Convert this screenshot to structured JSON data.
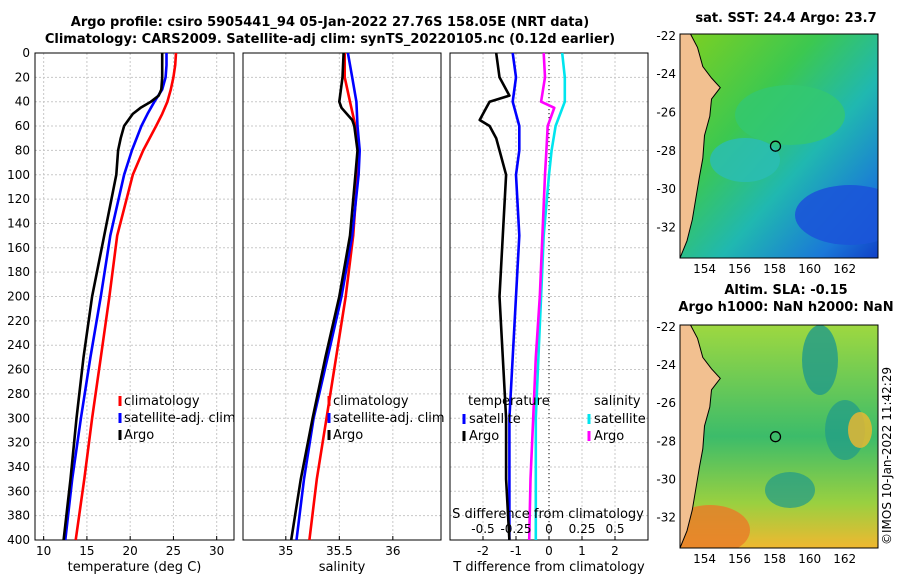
{
  "titles": {
    "line1": "Argo profile: csiro 5905441_94 05-Jan-2022 27.76S 158.05E (NRT data)",
    "line2": "Climatology: CARS2009. Satellite-adj clim: synTS_20220105.nc (0.12d earlier)"
  },
  "maps": {
    "sst_title": "sat. SST: 24.4 Argo: 23.7",
    "sla_title_1": "Altim. SLA: -0.15",
    "sla_title_2": "Argo h1000: NaN h2000: NaN",
    "lon_ticks": [
      "154",
      "156",
      "158",
      "160",
      "162"
    ],
    "lat_ticks": [
      "-22",
      "-24",
      "-26",
      "-28",
      "-30",
      "-32"
    ],
    "float_marker": {
      "lon": 158.05,
      "lat": -27.76
    }
  },
  "credit": "©IMOS 10-Jan-2022 11:42:29",
  "colors": {
    "climatology": "#ff0000",
    "satellite": "#0000ff",
    "argo": "#000000",
    "sal_satellite": "#00e5ee",
    "sal_argo": "#ff00ff"
  },
  "chart_data": [
    {
      "type": "line",
      "name": "temperature-profile",
      "xlabel": "temperature (deg C)",
      "ylabel": "",
      "xlim": [
        9,
        32
      ],
      "ylim": [
        400,
        0
      ],
      "xticks": [
        10,
        15,
        20,
        25,
        30
      ],
      "yticks": [
        0,
        20,
        40,
        60,
        80,
        100,
        120,
        140,
        160,
        180,
        200,
        220,
        240,
        260,
        280,
        300,
        320,
        340,
        360,
        380,
        400
      ],
      "legend": [
        "climatology",
        "satellite-adj. clim",
        "Argo"
      ],
      "series": [
        {
          "name": "climatology",
          "depth": [
            0,
            10,
            20,
            30,
            40,
            50,
            60,
            80,
            100,
            150,
            200,
            250,
            300,
            350,
            400
          ],
          "values": [
            25.3,
            25.2,
            25.0,
            24.7,
            24.3,
            23.7,
            23.0,
            21.5,
            20.3,
            18.5,
            17.6,
            16.6,
            15.6,
            14.7,
            13.7
          ]
        },
        {
          "name": "satellite-adj. clim",
          "depth": [
            0,
            10,
            20,
            30,
            40,
            50,
            60,
            80,
            100,
            150,
            200,
            250,
            300,
            350,
            400
          ],
          "values": [
            24.2,
            24.2,
            24.1,
            23.7,
            22.8,
            22.0,
            21.3,
            20.2,
            19.3,
            17.7,
            16.6,
            15.4,
            14.3,
            13.3,
            12.5
          ]
        },
        {
          "name": "Argo",
          "depth": [
            0,
            10,
            20,
            30,
            35,
            40,
            45,
            50,
            55,
            60,
            70,
            80,
            100,
            150,
            200,
            250,
            300,
            350,
            400
          ],
          "values": [
            23.7,
            23.7,
            23.7,
            23.6,
            23.3,
            22.4,
            21.2,
            20.3,
            19.8,
            19.3,
            18.9,
            18.6,
            18.4,
            17.0,
            15.6,
            14.6,
            13.8,
            13.1,
            12.3
          ]
        }
      ]
    },
    {
      "type": "line",
      "name": "salinity-profile",
      "xlabel": "salinity",
      "ylabel": "",
      "xlim": [
        34.6,
        36.45
      ],
      "ylim": [
        400,
        0
      ],
      "xticks": [
        35,
        35.5,
        36
      ],
      "xticklabels": [
        "35",
        "35.5",
        "36"
      ],
      "legend": [
        "climatology",
        "satellite-adj. clim",
        "Argo"
      ],
      "series": [
        {
          "name": "climatology",
          "depth": [
            0,
            20,
            40,
            60,
            80,
            100,
            150,
            200,
            250,
            300,
            350,
            400
          ],
          "values": [
            35.55,
            35.55,
            35.6,
            35.65,
            35.68,
            35.67,
            35.63,
            35.56,
            35.47,
            35.38,
            35.29,
            35.22
          ]
        },
        {
          "name": "satellite-adj. clim",
          "depth": [
            0,
            20,
            40,
            60,
            80,
            100,
            150,
            200,
            250,
            300,
            350,
            400
          ],
          "values": [
            35.58,
            35.62,
            35.66,
            35.67,
            35.69,
            35.68,
            35.62,
            35.52,
            35.39,
            35.26,
            35.17,
            35.1
          ]
        },
        {
          "name": "Argo",
          "depth": [
            0,
            20,
            40,
            45,
            55,
            60,
            80,
            100,
            150,
            200,
            250,
            300,
            350,
            400
          ],
          "values": [
            35.54,
            35.53,
            35.5,
            35.52,
            35.62,
            35.64,
            35.67,
            35.65,
            35.6,
            35.5,
            35.37,
            35.25,
            35.14,
            35.05
          ]
        }
      ]
    },
    {
      "type": "line",
      "name": "difference-profile",
      "xlabel": "T difference from climatology",
      "xlabel_top": "S difference from climatology",
      "xlim": [
        -3,
        3
      ],
      "ylim": [
        400,
        0
      ],
      "xticks": [
        -2,
        -1,
        0,
        1,
        2
      ],
      "top_ticks": [
        -0.5,
        -0.25,
        0,
        0.25,
        0.5
      ],
      "top_ticklabels": [
        "-0.5",
        "-0.25",
        "0",
        "0.25",
        "0.5"
      ],
      "legend_t": {
        "title": "temperature",
        "items": [
          "satellite",
          "Argo"
        ]
      },
      "legend_s": {
        "title": "salinity",
        "items": [
          "satellite",
          "Argo"
        ]
      },
      "series": [
        {
          "name": "T satellite",
          "depth": [
            0,
            20,
            40,
            60,
            80,
            100,
            150,
            200,
            250,
            300,
            350,
            400
          ],
          "values": [
            -1.1,
            -1.0,
            -1.1,
            -0.9,
            -0.9,
            -1.0,
            -0.9,
            -1.0,
            -1.1,
            -1.2,
            -1.2,
            -1.2
          ]
        },
        {
          "name": "T Argo",
          "depth": [
            0,
            20,
            35,
            40,
            45,
            50,
            55,
            60,
            70,
            80,
            100,
            150,
            200,
            250,
            300,
            350,
            400
          ],
          "values": [
            -1.6,
            -1.5,
            -1.2,
            -1.8,
            -1.9,
            -2.0,
            -2.1,
            -1.8,
            -1.6,
            -1.5,
            -1.3,
            -1.4,
            -1.5,
            -1.4,
            -1.3,
            -1.3,
            -1.2
          ]
        },
        {
          "name": "S satellite",
          "depth": [
            0,
            20,
            40,
            60,
            80,
            100,
            150,
            200,
            250,
            300,
            350,
            400
          ],
          "values": [
            0.1,
            0.12,
            0.12,
            0.05,
            0.02,
            0.0,
            -0.04,
            -0.06,
            -0.08,
            -0.1,
            -0.1,
            -0.1
          ]
        },
        {
          "name": "S Argo",
          "depth": [
            0,
            20,
            40,
            45,
            60,
            80,
            100,
            150,
            200,
            250,
            300,
            350,
            400
          ],
          "values": [
            -0.04,
            -0.03,
            -0.06,
            0.04,
            -0.01,
            -0.02,
            -0.03,
            -0.05,
            -0.07,
            -0.1,
            -0.12,
            -0.14,
            -0.15
          ]
        }
      ]
    }
  ]
}
